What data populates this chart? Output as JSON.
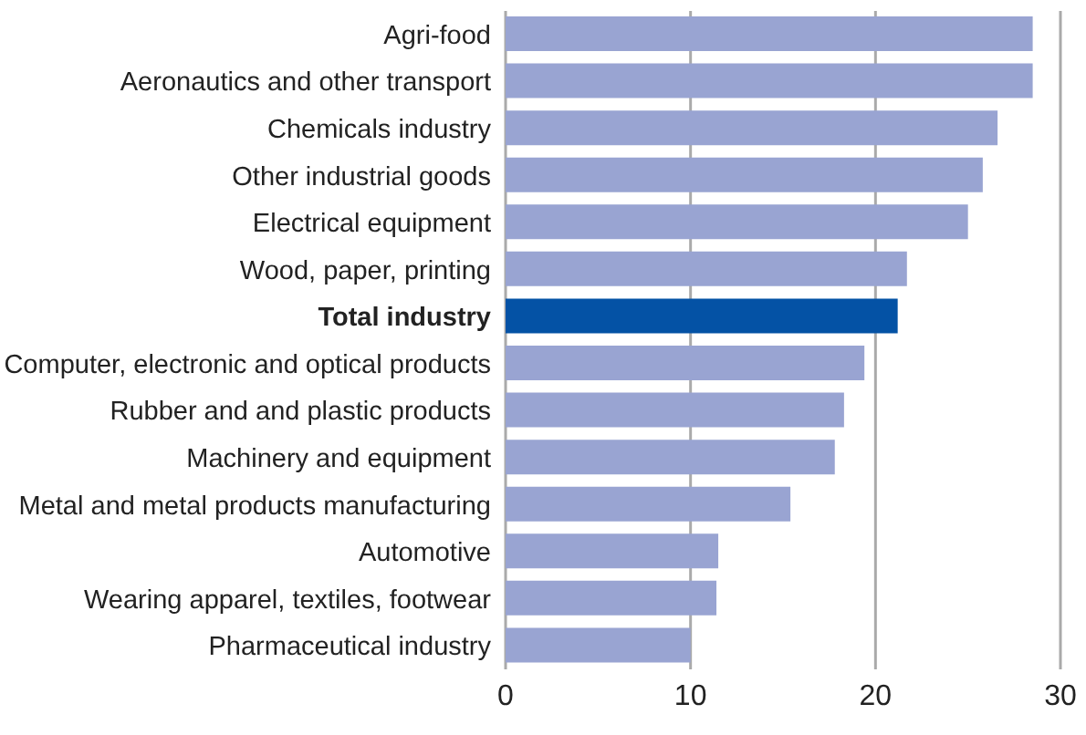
{
  "chart_data": {
    "type": "bar",
    "orientation": "horizontal",
    "categories": [
      "Agri-food",
      "Aeronautics and other transport",
      "Chemicals industry",
      "Other industrial goods",
      "Electrical equipment",
      "Wood, paper, printing",
      "Total industry",
      "Computer, electronic and optical products",
      "Rubber and and plastic products",
      "Machinery and equipment",
      "Metal and metal products manufacturing",
      "Automotive",
      "Wearing apparel, textiles, footwear",
      "Pharmaceutical industry"
    ],
    "values": [
      28.5,
      28.5,
      26.6,
      25.8,
      25.0,
      21.7,
      21.2,
      19.4,
      18.3,
      17.8,
      15.4,
      11.5,
      11.4,
      10.0
    ],
    "colors": [
      "#99a4d2",
      "#99a4d2",
      "#99a4d2",
      "#99a4d2",
      "#99a4d2",
      "#99a4d2",
      "#0452a5",
      "#99a4d2",
      "#99a4d2",
      "#99a4d2",
      "#99a4d2",
      "#99a4d2",
      "#99a4d2",
      "#99a4d2"
    ],
    "xlim": [
      0,
      30
    ],
    "xticks": [
      0,
      10,
      20,
      30
    ],
    "grid": "x",
    "legend": false
  }
}
